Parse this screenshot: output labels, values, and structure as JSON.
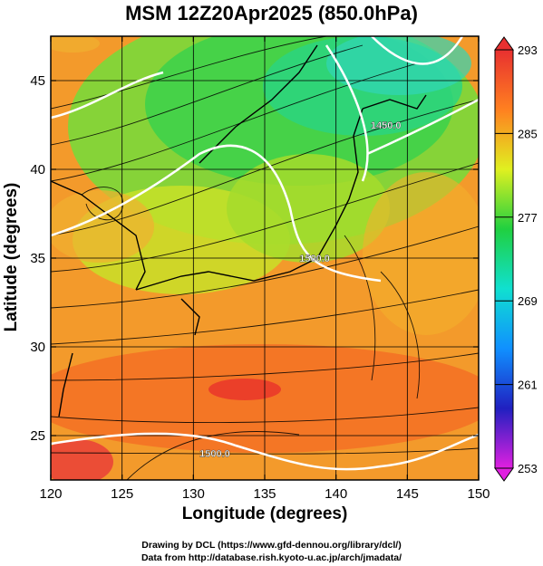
{
  "chart_data": {
    "type": "heatmap",
    "title": "MSM 12Z20Apr2025 (850.0hPa)",
    "xlabel": "Longitude (degrees)",
    "ylabel": "Latitude  (degrees)",
    "xlim": [
      120,
      150
    ],
    "ylim": [
      22.5,
      47.5
    ],
    "x_ticks": [
      120,
      125,
      130,
      135,
      140,
      145,
      150
    ],
    "y_ticks": [
      25,
      30,
      35,
      40,
      45
    ],
    "grid": true,
    "field": "temperature",
    "colorbar": {
      "min": 253,
      "max": 293,
      "ticks": [
        253,
        261,
        269,
        277,
        285,
        293
      ],
      "position": "right",
      "colors": [
        "#e020e0",
        "#2020c0",
        "#1090ff",
        "#10e0d0",
        "#20d040",
        "#e0f020",
        "#ff8020",
        "#e83030"
      ]
    },
    "contours": [
      {
        "label": "1500.0",
        "lon": 138.5,
        "lat": 35.0
      },
      {
        "label": "1450.0",
        "lon": 143.5,
        "lat": 42.5
      },
      {
        "label": "1500.0",
        "lon": 131.5,
        "lat": 24.0
      }
    ],
    "features": [
      "streamlines",
      "coastlines",
      "geopotential-height-contours"
    ]
  },
  "credits": {
    "line1": "Drawing by DCL (https://www.gfd-dennou.org/library/dcl/)",
    "line2": "Data from http://database.rish.kyoto-u.ac.jp/arch/jmadata/"
  }
}
